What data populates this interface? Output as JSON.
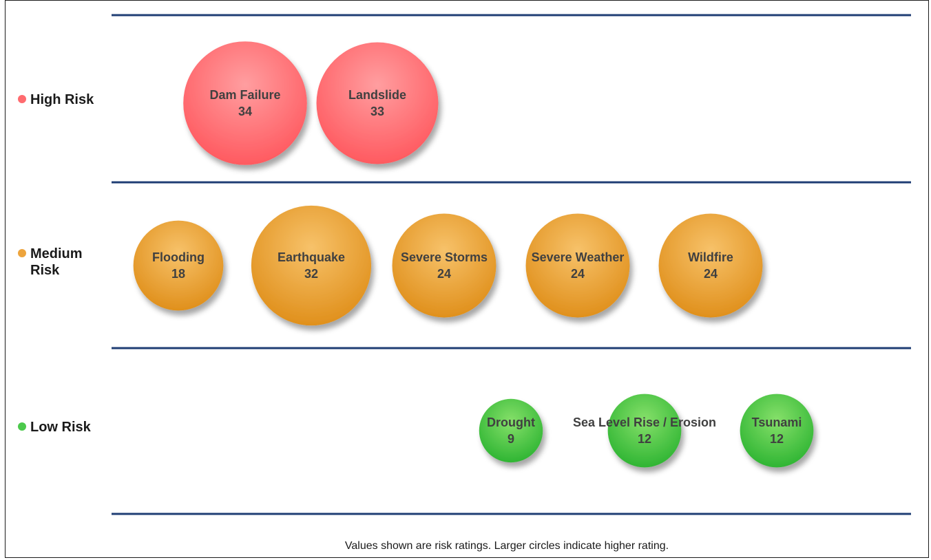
{
  "chart_data": {
    "type": "bubble",
    "footnote": "Values shown are risk ratings. Larger circles indicate higher rating.",
    "tiers": [
      {
        "id": "high",
        "label_lines": [
          "High Risk"
        ],
        "color": "#ff6b6f",
        "items": [
          {
            "name": "Dam Failure",
            "value": 34
          },
          {
            "name": "Landslide",
            "value": 33
          }
        ]
      },
      {
        "id": "medium",
        "label_lines": [
          "Medium",
          "Risk"
        ],
        "color": "#eda43d",
        "items": [
          {
            "name": "Flooding",
            "value": 18
          },
          {
            "name": "Earthquake",
            "value": 32
          },
          {
            "name": "Severe Storms",
            "value": 24
          },
          {
            "name": "Severe Weather",
            "value": 24
          },
          {
            "name": "Wildfire",
            "value": 24
          }
        ]
      },
      {
        "id": "low",
        "label_lines": [
          "Low Risk"
        ],
        "color": "#4cc94c",
        "items": [
          {
            "name": "Drought",
            "value": 9
          },
          {
            "name": "Sea Level Rise / Erosion",
            "value": 12
          },
          {
            "name": "Tsunami",
            "value": 12
          }
        ]
      }
    ]
  }
}
